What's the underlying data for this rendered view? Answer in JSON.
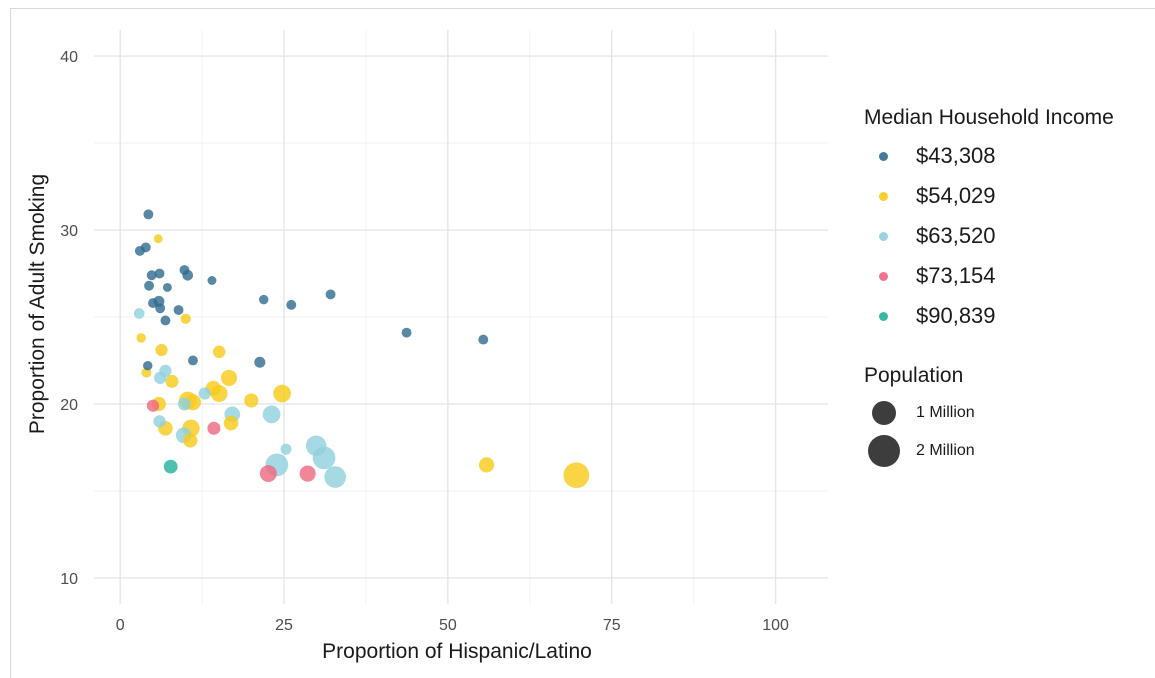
{
  "chart_data": {
    "type": "scatter",
    "xlabel": "Proportion of Hispanic/Latino",
    "ylabel": "Proportion of Adult Smoking",
    "xlim": [
      -4,
      108
    ],
    "ylim": [
      8.5,
      41.5
    ],
    "x_ticks": [
      "0",
      "25",
      "50",
      "75",
      "100"
    ],
    "y_ticks": [
      "10",
      "20",
      "30",
      "40"
    ],
    "grid": true,
    "legend_position": "right",
    "color_legend": {
      "title": "Median Household Income",
      "entries": [
        {
          "label": "$43,308",
          "color": "#2f6a8f"
        },
        {
          "label": "$54,029",
          "color": "#f7ca18"
        },
        {
          "label": "$63,520",
          "color": "#8ecfdc"
        },
        {
          "label": "$73,154",
          "color": "#ee6680"
        },
        {
          "label": "$90,839",
          "color": "#22b09a"
        }
      ]
    },
    "size_legend": {
      "title": "Population",
      "entries": [
        {
          "label": "1 Million",
          "population_millions": 1
        },
        {
          "label": "2 Million",
          "population_millions": 2
        }
      ]
    },
    "series": [
      {
        "name": "$43,308",
        "points": [
          {
            "x": 4.3,
            "y": 30.9,
            "pop": 0.05
          },
          {
            "x": 3.9,
            "y": 29.0,
            "pop": 0.05
          },
          {
            "x": 3.0,
            "y": 28.8,
            "pop": 0.05
          },
          {
            "x": 4.8,
            "y": 27.4,
            "pop": 0.05
          },
          {
            "x": 6.0,
            "y": 27.5,
            "pop": 0.05
          },
          {
            "x": 4.4,
            "y": 26.8,
            "pop": 0.05
          },
          {
            "x": 7.2,
            "y": 26.7,
            "pop": 0.03
          },
          {
            "x": 9.8,
            "y": 27.7,
            "pop": 0.05
          },
          {
            "x": 10.3,
            "y": 27.4,
            "pop": 0.07
          },
          {
            "x": 14.0,
            "y": 27.1,
            "pop": 0.03
          },
          {
            "x": 5.9,
            "y": 25.9,
            "pop": 0.08
          },
          {
            "x": 5.0,
            "y": 25.8,
            "pop": 0.05
          },
          {
            "x": 6.1,
            "y": 25.5,
            "pop": 0.05
          },
          {
            "x": 8.9,
            "y": 25.4,
            "pop": 0.05
          },
          {
            "x": 6.9,
            "y": 24.8,
            "pop": 0.05
          },
          {
            "x": 21.9,
            "y": 26.0,
            "pop": 0.04
          },
          {
            "x": 26.1,
            "y": 25.7,
            "pop": 0.05
          },
          {
            "x": 32.1,
            "y": 26.3,
            "pop": 0.05
          },
          {
            "x": 43.7,
            "y": 24.1,
            "pop": 0.05
          },
          {
            "x": 55.4,
            "y": 23.7,
            "pop": 0.05
          },
          {
            "x": 4.2,
            "y": 22.2,
            "pop": 0.04
          },
          {
            "x": 11.1,
            "y": 22.5,
            "pop": 0.05
          },
          {
            "x": 21.3,
            "y": 22.4,
            "pop": 0.08
          }
        ]
      },
      {
        "name": "$54,029",
        "points": [
          {
            "x": 5.8,
            "y": 29.5,
            "pop": 0.03
          },
          {
            "x": 3.2,
            "y": 23.8,
            "pop": 0.04
          },
          {
            "x": 10.0,
            "y": 24.9,
            "pop": 0.06
          },
          {
            "x": 6.3,
            "y": 23.1,
            "pop": 0.12
          },
          {
            "x": 4.0,
            "y": 21.8,
            "pop": 0.05
          },
          {
            "x": 7.9,
            "y": 21.3,
            "pop": 0.15
          },
          {
            "x": 15.1,
            "y": 23.0,
            "pop": 0.13
          },
          {
            "x": 16.6,
            "y": 21.5,
            "pop": 0.3
          },
          {
            "x": 14.2,
            "y": 20.9,
            "pop": 0.25
          },
          {
            "x": 15.1,
            "y": 20.6,
            "pop": 0.35
          },
          {
            "x": 10.3,
            "y": 20.2,
            "pop": 0.4
          },
          {
            "x": 11.1,
            "y": 20.1,
            "pop": 0.3
          },
          {
            "x": 20.0,
            "y": 20.2,
            "pop": 0.2
          },
          {
            "x": 24.7,
            "y": 20.6,
            "pop": 0.4
          },
          {
            "x": 5.9,
            "y": 20.0,
            "pop": 0.2
          },
          {
            "x": 6.9,
            "y": 18.6,
            "pop": 0.22
          },
          {
            "x": 10.8,
            "y": 18.6,
            "pop": 0.38
          },
          {
            "x": 10.7,
            "y": 17.9,
            "pop": 0.2
          },
          {
            "x": 16.9,
            "y": 18.9,
            "pop": 0.22
          },
          {
            "x": 55.9,
            "y": 16.5,
            "pop": 0.25
          },
          {
            "x": 69.6,
            "y": 15.9,
            "pop": 1.1
          }
        ]
      },
      {
        "name": "$63,520",
        "points": [
          {
            "x": 2.9,
            "y": 25.2,
            "pop": 0.07
          },
          {
            "x": 6.9,
            "y": 21.9,
            "pop": 0.12
          },
          {
            "x": 6.1,
            "y": 21.5,
            "pop": 0.12
          },
          {
            "x": 12.9,
            "y": 20.6,
            "pop": 0.12
          },
          {
            "x": 9.8,
            "y": 20.0,
            "pop": 0.15
          },
          {
            "x": 17.1,
            "y": 19.4,
            "pop": 0.28
          },
          {
            "x": 23.1,
            "y": 19.4,
            "pop": 0.4
          },
          {
            "x": 6.0,
            "y": 19.0,
            "pop": 0.12
          },
          {
            "x": 9.7,
            "y": 18.2,
            "pop": 0.28
          },
          {
            "x": 23.9,
            "y": 16.5,
            "pop": 0.8
          },
          {
            "x": 25.3,
            "y": 17.4,
            "pop": 0.08
          },
          {
            "x": 29.9,
            "y": 17.6,
            "pop": 0.6
          },
          {
            "x": 31.1,
            "y": 16.9,
            "pop": 0.8
          },
          {
            "x": 32.8,
            "y": 15.8,
            "pop": 0.7
          }
        ]
      },
      {
        "name": "$73,154",
        "points": [
          {
            "x": 5.0,
            "y": 19.9,
            "pop": 0.12
          },
          {
            "x": 14.3,
            "y": 18.6,
            "pop": 0.15
          },
          {
            "x": 22.6,
            "y": 16.0,
            "pop": 0.35
          },
          {
            "x": 28.6,
            "y": 16.0,
            "pop": 0.3
          }
        ]
      },
      {
        "name": "$90,839",
        "points": [
          {
            "x": 7.7,
            "y": 16.4,
            "pop": 0.18
          }
        ]
      }
    ]
  }
}
